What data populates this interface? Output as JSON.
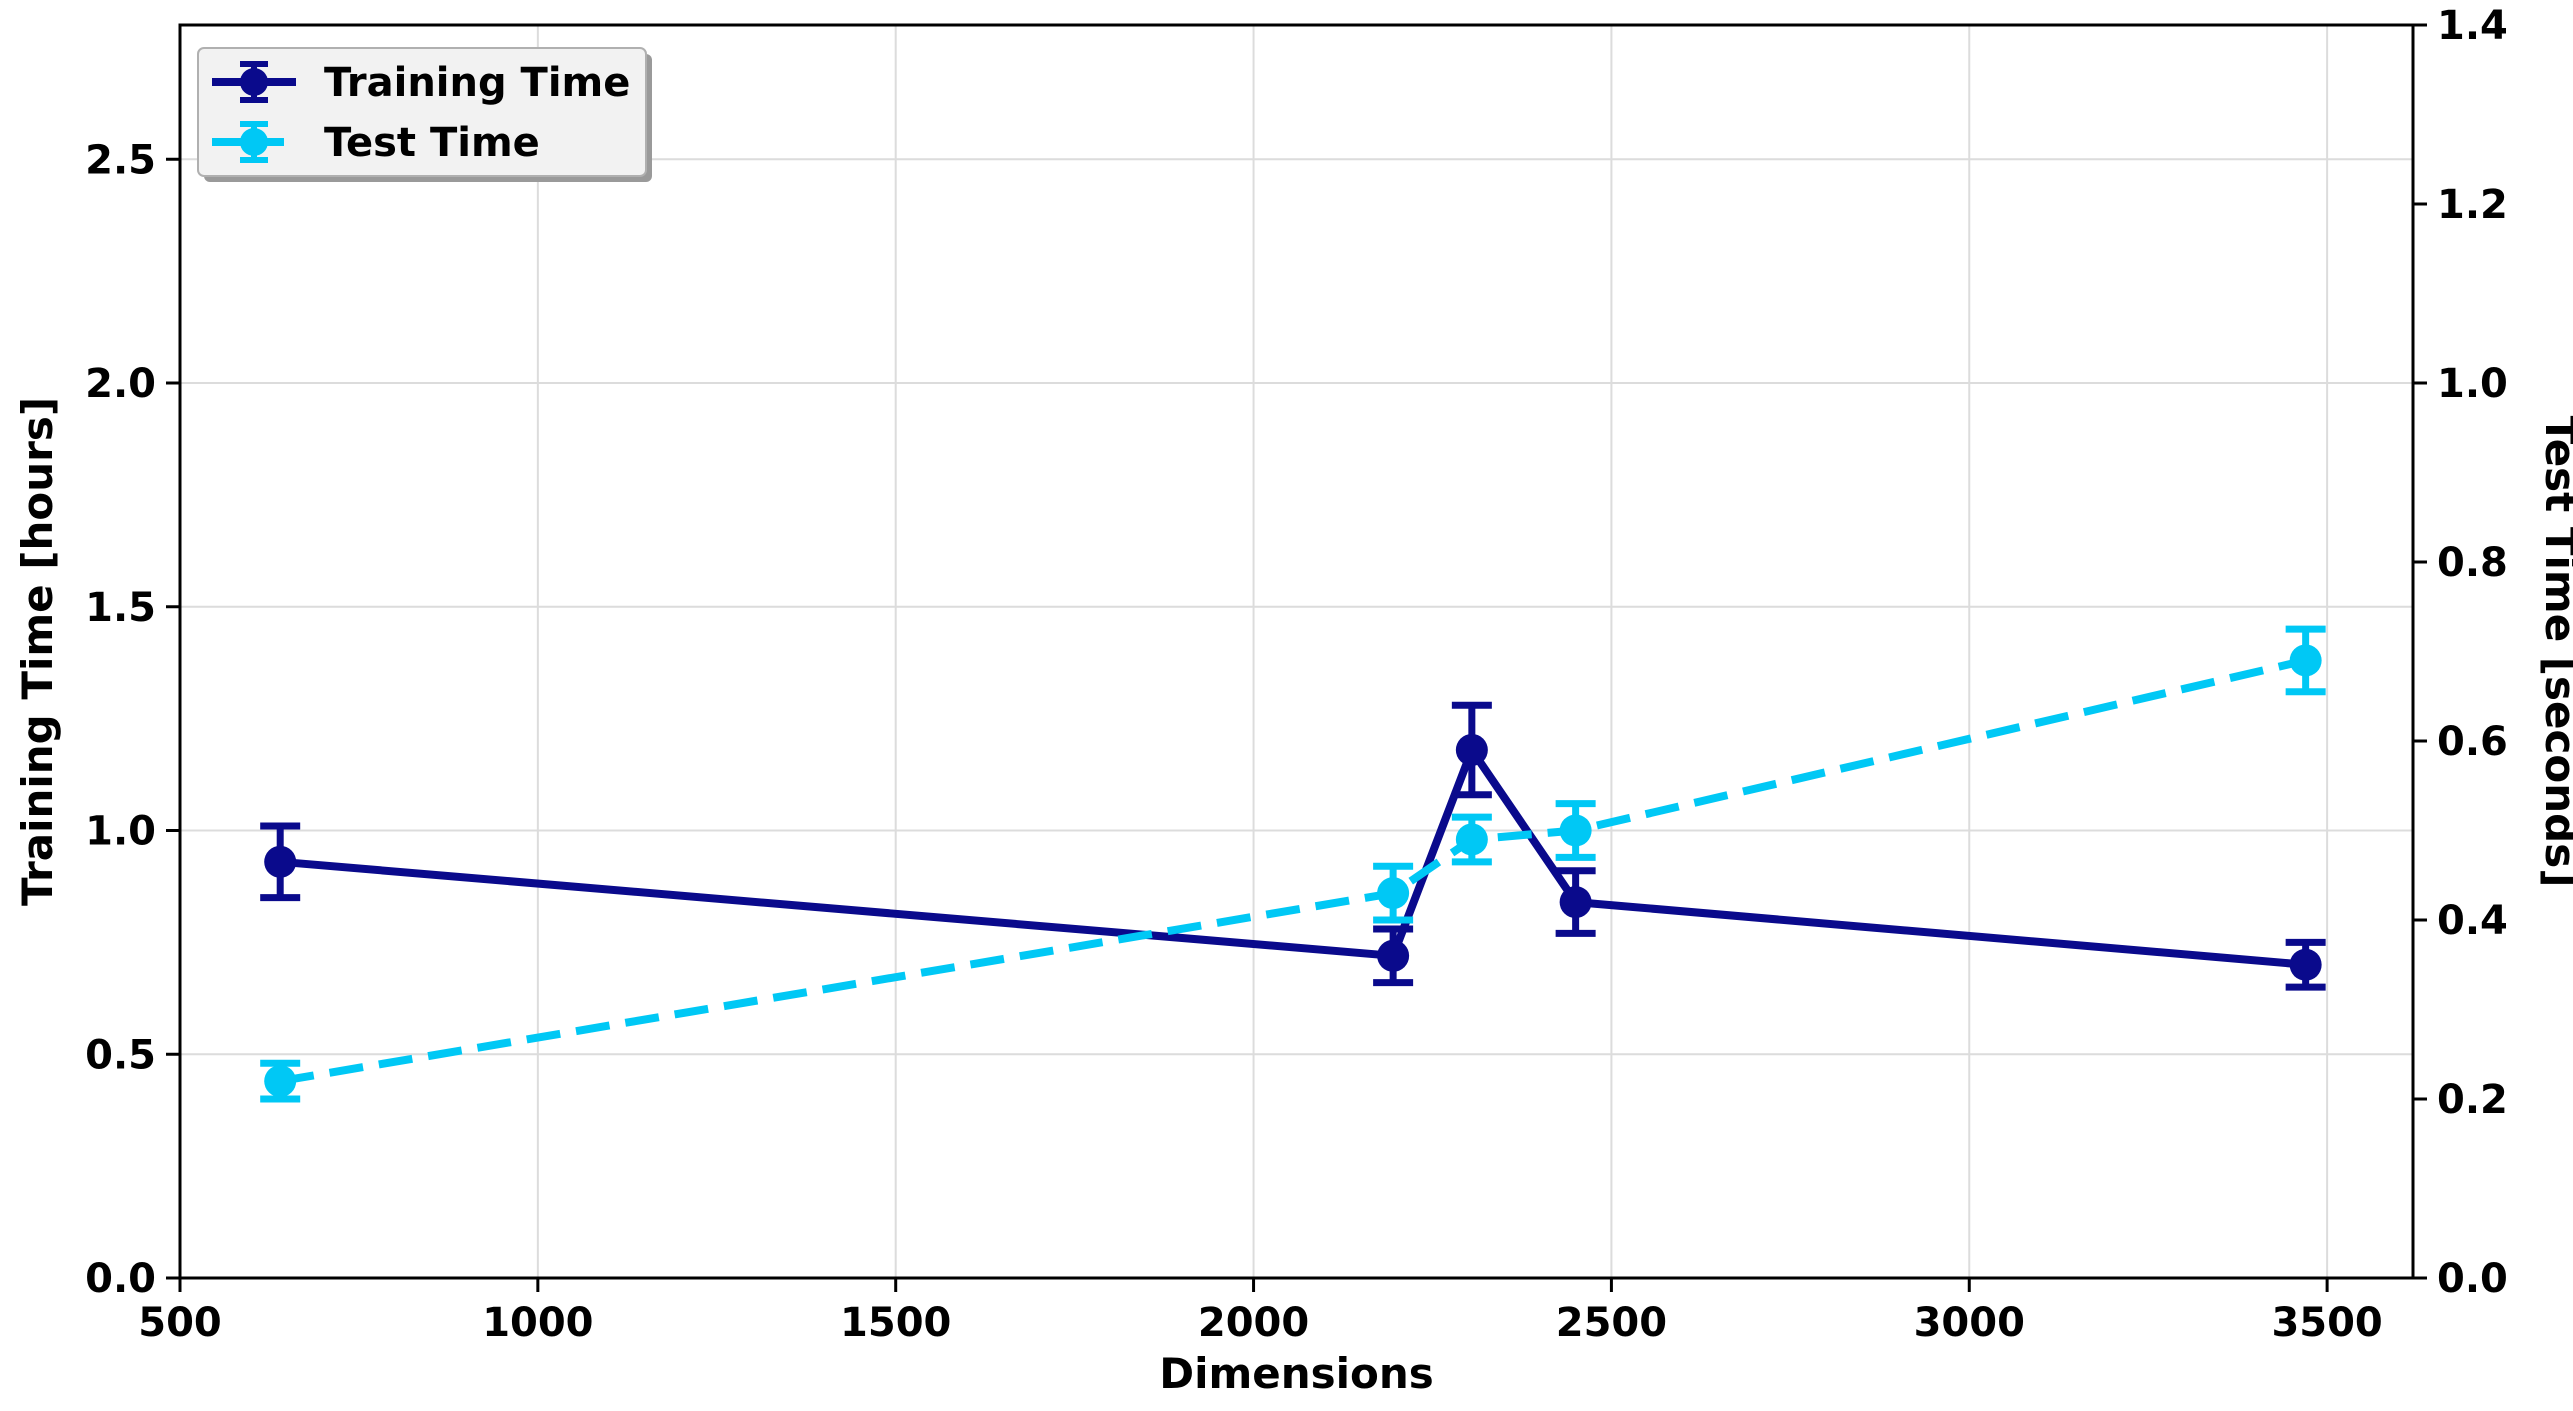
{
  "chart_data": {
    "type": "line",
    "title": "",
    "xlabel": "Dimensions",
    "ylabel_left": "Training Time [hours]",
    "ylabel_right": "Test Time [seconds]",
    "xlim": [
      500,
      3620
    ],
    "ylim_left": [
      0,
      2.8
    ],
    "ylim_right": [
      0,
      1.4
    ],
    "x_ticks": [
      500,
      1000,
      1500,
      2000,
      2500,
      3000,
      3500
    ],
    "y_ticks_left": [
      0.0,
      0.5,
      1.0,
      1.5,
      2.0,
      2.5
    ],
    "y_ticks_right": [
      0.0,
      0.2,
      0.4,
      0.6,
      0.8,
      1.0,
      1.2,
      1.4
    ],
    "grid": true,
    "legend_position": "top-left",
    "series": [
      {
        "name": "Training Time",
        "axis": "left",
        "style": "solid",
        "color": "#0a0a8c",
        "x": [
          640,
          2195,
          2305,
          2450,
          3470
        ],
        "y": [
          0.93,
          0.72,
          1.18,
          0.84,
          0.7
        ],
        "err": [
          0.08,
          0.06,
          0.1,
          0.07,
          0.05
        ]
      },
      {
        "name": "Test Time",
        "axis": "right",
        "style": "dashed",
        "color": "#00c8f5",
        "x": [
          640,
          2195,
          2305,
          2450,
          3470
        ],
        "y": [
          0.22,
          0.43,
          0.49,
          0.5,
          0.69
        ],
        "err": [
          0.02,
          0.03,
          0.025,
          0.03,
          0.035
        ]
      }
    ]
  }
}
